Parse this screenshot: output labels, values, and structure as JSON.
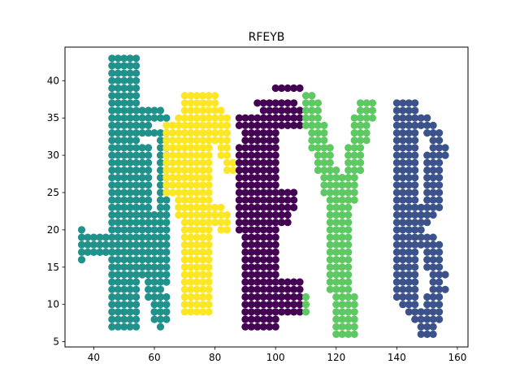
{
  "chart_data": {
    "type": "scatter",
    "title": "RFEYB",
    "xlabel": "",
    "ylabel": "",
    "xlim": [
      30.5,
      163.5
    ],
    "ylim": [
      4.3,
      44.5
    ],
    "xticks": [
      40,
      60,
      80,
      100,
      120,
      140,
      160
    ],
    "yticks": [
      5,
      10,
      15,
      20,
      25,
      30,
      35,
      40
    ],
    "grid": false,
    "legend": "none",
    "series": [
      {
        "color": "#21918c",
        "letter": "R",
        "segments": [
          {
            "x0": 49,
            "y0": 43,
            "x1": 49,
            "y1": 7,
            "w": 5
          },
          {
            "x0": 49,
            "y0": 36,
            "x1": 63,
            "y1": 35,
            "w": 2
          },
          {
            "x0": 50,
            "y0": 34,
            "x1": 59,
            "y1": 33,
            "w": 2
          },
          {
            "x0": 49,
            "y0": 30,
            "x1": 57,
            "y1": 30,
            "w": 3
          },
          {
            "x0": 58,
            "y0": 29,
            "x1": 57,
            "y1": 21,
            "w": 2
          },
          {
            "x0": 49,
            "y0": 21,
            "x1": 62,
            "y1": 21,
            "w": 3
          },
          {
            "x0": 36,
            "y0": 18,
            "x1": 63,
            "y1": 18,
            "w": 3
          },
          {
            "x0": 36,
            "y0": 20,
            "x1": 36,
            "y1": 16,
            "w": 1
          },
          {
            "x0": 62,
            "y0": 33,
            "x1": 62,
            "y1": 13,
            "w": 2
          },
          {
            "x0": 57,
            "y0": 17,
            "x1": 63,
            "y1": 8,
            "w": 3
          }
        ]
      },
      {
        "color": "#fde725",
        "letter": "F",
        "segments": [
          {
            "x0": 73,
            "y0": 38,
            "x1": 74,
            "y1": 9,
            "w": 5
          },
          {
            "x0": 71,
            "y0": 38,
            "x1": 80,
            "y1": 37,
            "w": 2
          },
          {
            "x0": 73,
            "y0": 36,
            "x1": 84,
            "y1": 34,
            "w": 3
          },
          {
            "x0": 80,
            "y0": 35,
            "x1": 85,
            "y1": 28,
            "w": 2
          },
          {
            "x0": 74,
            "y0": 23,
            "x1": 84,
            "y1": 21,
            "w": 3
          },
          {
            "x0": 64,
            "y0": 34,
            "x1": 66,
            "y1": 25,
            "w": 2
          },
          {
            "x0": 69,
            "y0": 35,
            "x1": 70,
            "y1": 22,
            "w": 2
          }
        ]
      },
      {
        "color": "#440154",
        "letter": "E",
        "segments": [
          {
            "x0": 96,
            "y0": 35,
            "x1": 94,
            "y1": 7,
            "w": 6
          },
          {
            "x0": 88,
            "y0": 35,
            "x1": 95,
            "y1": 33,
            "w": 2
          },
          {
            "x0": 95,
            "y0": 37,
            "x1": 107,
            "y1": 36,
            "w": 2
          },
          {
            "x0": 100,
            "y0": 39,
            "x1": 108,
            "y1": 39,
            "w": 1
          },
          {
            "x0": 100,
            "y0": 34,
            "x1": 107,
            "y1": 34,
            "w": 2
          },
          {
            "x0": 88,
            "y0": 31,
            "x1": 88,
            "y1": 20,
            "w": 2
          },
          {
            "x0": 96,
            "y0": 25,
            "x1": 106,
            "y1": 24,
            "w": 3
          },
          {
            "x0": 96,
            "y0": 21,
            "x1": 104,
            "y1": 21,
            "w": 2
          },
          {
            "x0": 96,
            "y0": 12,
            "x1": 107,
            "y1": 12,
            "w": 3
          },
          {
            "x0": 96,
            "y0": 10,
            "x1": 108,
            "y1": 9,
            "w": 2
          }
        ]
      },
      {
        "color": "#5ec962",
        "letter": "Y",
        "segments": [
          {
            "x0": 111,
            "y0": 37,
            "x1": 121,
            "y1": 22,
            "w": 3
          },
          {
            "x0": 130,
            "y0": 37,
            "x1": 122,
            "y1": 22,
            "w": 3
          },
          {
            "x0": 120,
            "y0": 22,
            "x1": 123,
            "y1": 6,
            "w": 4
          },
          {
            "x0": 109,
            "y0": 38,
            "x1": 112,
            "y1": 31,
            "w": 1
          },
          {
            "x0": 110,
            "y0": 11,
            "x1": 110,
            "y1": 9,
            "w": 1
          }
        ]
      },
      {
        "color": "#3b528b",
        "letter": "B",
        "segments": [
          {
            "x0": 142,
            "y0": 37,
            "x1": 142,
            "y1": 11,
            "w": 4
          },
          {
            "x0": 142,
            "y0": 35,
            "x1": 151,
            "y1": 34,
            "w": 2
          },
          {
            "x0": 151,
            "y0": 34,
            "x1": 155,
            "y1": 30,
            "w": 2
          },
          {
            "x0": 153,
            "y0": 30,
            "x1": 152,
            "y1": 23,
            "w": 3
          },
          {
            "x0": 151,
            "y0": 23,
            "x1": 145,
            "y1": 20,
            "w": 2
          },
          {
            "x0": 143,
            "y0": 20,
            "x1": 151,
            "y1": 18,
            "w": 2
          },
          {
            "x0": 151,
            "y0": 18,
            "x1": 154,
            "y1": 13,
            "w": 3
          },
          {
            "x0": 154,
            "y0": 13,
            "x1": 151,
            "y1": 8,
            "w": 3
          },
          {
            "x0": 143,
            "y0": 10,
            "x1": 152,
            "y1": 7,
            "w": 2
          },
          {
            "x0": 148,
            "y0": 6,
            "x1": 152,
            "y1": 6,
            "w": 1
          },
          {
            "x0": 139,
            "y0": 26,
            "x1": 140,
            "y1": 19,
            "w": 1
          }
        ]
      }
    ]
  }
}
